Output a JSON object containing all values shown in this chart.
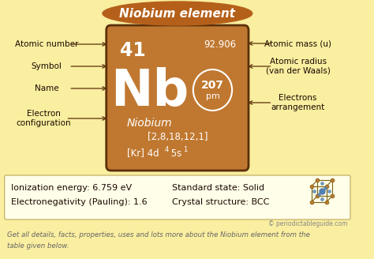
{
  "title": "Niobium element",
  "bg_color": "#faeea0",
  "title_bg_color": "#b5601a",
  "title_text_color": "#ffffff",
  "card_color": "#c07830",
  "card_border_color": "#5a3008",
  "atomic_number": "41",
  "atomic_mass": "92.906",
  "symbol": "Nb",
  "name": "Niobium",
  "electron_config_long": "[2,8,18,12,1]",
  "radius_value": "207",
  "radius_unit": "pm",
  "info_line1_left": "Ionization energy: 6.759 eV",
  "info_line2_left": "Electronegativity (Pauling): 1.6",
  "info_line1_right": "Standard state: Solid",
  "info_line2_right": "Crystal structure: BCC",
  "copyright": "© periodictableguide.com",
  "footer1": "Get all details, facts, properties, uses and lots more about the Niobium element from the",
  "footer2": "table given below.",
  "white_text": "#ffffff",
  "info_box_color": "#fffee8",
  "info_box_border": "#c8b870",
  "arrow_color": "#5a3008",
  "label_color": "#1a0800"
}
